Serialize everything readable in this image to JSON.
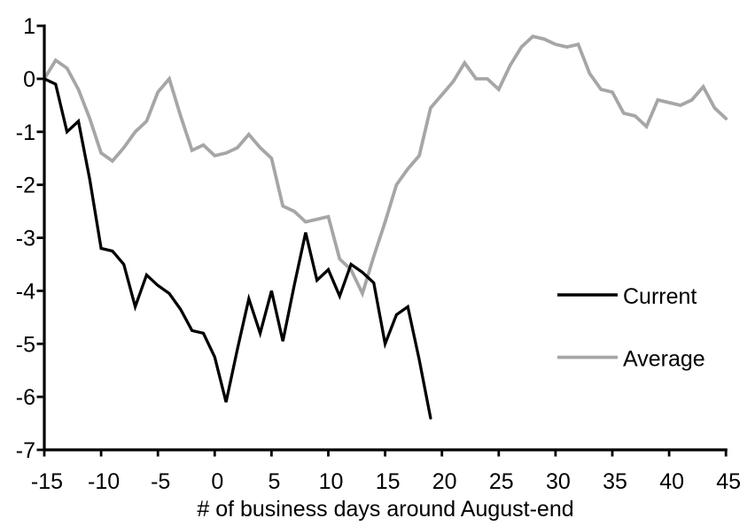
{
  "chart_data": {
    "type": "line",
    "title": "",
    "xlabel": "# of business days around August-end",
    "ylabel": "",
    "xlim": [
      -15,
      45
    ],
    "ylim": [
      -7,
      1
    ],
    "grid": false,
    "xticks": [
      -15,
      -10,
      -5,
      0,
      5,
      10,
      15,
      20,
      25,
      30,
      35,
      40,
      45
    ],
    "yticks": [
      1,
      0,
      -1,
      -2,
      -3,
      -4,
      -5,
      -6,
      -7
    ],
    "days": [
      -15,
      -14,
      -13,
      -12,
      -11,
      -10,
      -9,
      -8,
      -7,
      -6,
      -5,
      -4,
      -3,
      -2,
      -1,
      0,
      1,
      2,
      3,
      4,
      5,
      6,
      7,
      8,
      9,
      10,
      11,
      12,
      13,
      14,
      15,
      16,
      17,
      18,
      19,
      20,
      21,
      22,
      23,
      24,
      25,
      26,
      27,
      28,
      29,
      30,
      31,
      32,
      33,
      34,
      35,
      36,
      37,
      38,
      39,
      40,
      41,
      42,
      43,
      44,
      45
    ],
    "legend_position": "right-middle",
    "series": [
      {
        "name": "Current",
        "color": "#000000",
        "x_start": -15,
        "x_end": 19,
        "values": [
          0,
          -0.1,
          -1.0,
          -0.8,
          -1.9,
          -3.2,
          -3.25,
          -3.5,
          -4.3,
          -3.7,
          -3.9,
          -4.05,
          -4.35,
          -4.75,
          -4.8,
          -5.25,
          -6.1,
          -5.1,
          -4.15,
          -4.8,
          -4.0,
          -4.95,
          -3.9,
          -2.9,
          -3.8,
          -3.6,
          -4.1,
          -3.5,
          -3.65,
          -3.85,
          -5.0,
          -4.45,
          -4.3,
          -5.3,
          -6.4
        ]
      },
      {
        "name": "Average",
        "color": "#a6a6a6",
        "x_start": -15,
        "x_end": 45,
        "values": [
          0,
          0.35,
          0.2,
          -0.2,
          -0.75,
          -1.4,
          -1.55,
          -1.3,
          -1.0,
          -0.8,
          -0.25,
          0.0,
          -0.7,
          -1.35,
          -1.25,
          -1.45,
          -1.4,
          -1.3,
          -1.05,
          -1.3,
          -1.5,
          -2.4,
          -2.5,
          -2.7,
          -2.65,
          -2.6,
          -3.4,
          -3.6,
          -4.05,
          -3.35,
          -2.7,
          -2.0,
          -1.7,
          -1.45,
          -0.55,
          -0.3,
          -0.05,
          0.3,
          0.0,
          0.0,
          -0.2,
          0.25,
          0.6,
          0.8,
          0.75,
          0.65,
          0.6,
          0.65,
          0.1,
          -0.2,
          -0.25,
          -0.65,
          -0.7,
          -0.9,
          -0.4,
          -0.45,
          -0.5,
          -0.4,
          -0.15,
          -0.55,
          -0.75
        ]
      }
    ]
  }
}
